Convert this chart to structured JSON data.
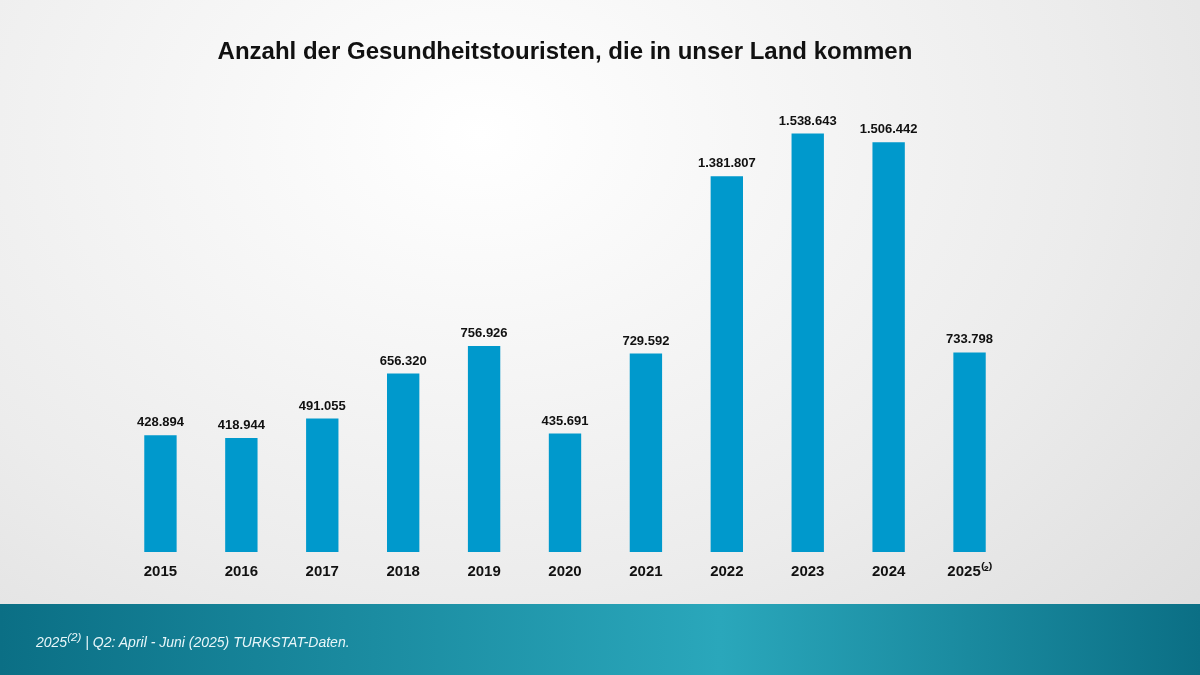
{
  "chart_data": {
    "type": "bar",
    "title": "Anzahl der Gesundheitstouristen, die in unser Land kommen",
    "categories": [
      "2015",
      "2016",
      "2017",
      "2018",
      "2019",
      "2020",
      "2021",
      "2022",
      "2023",
      "2024",
      "2025⁽²⁾"
    ],
    "values": [
      428894,
      418944,
      491055,
      656320,
      756926,
      435691,
      729592,
      1381807,
      1538643,
      1506442,
      733798
    ],
    "value_labels": [
      "428.894",
      "418.944",
      "491.055",
      "656.320",
      "756.926",
      "435.691",
      "729.592",
      "1.381.807",
      "1.538.643",
      "1.506.442",
      "733.798"
    ],
    "color": "#0099cc",
    "grid": false,
    "legend": false,
    "annotations": [
      "2025$^{(2)}$ | Q2: April - Juni (2025) TURKSTAT-Daten."
    ]
  }
}
